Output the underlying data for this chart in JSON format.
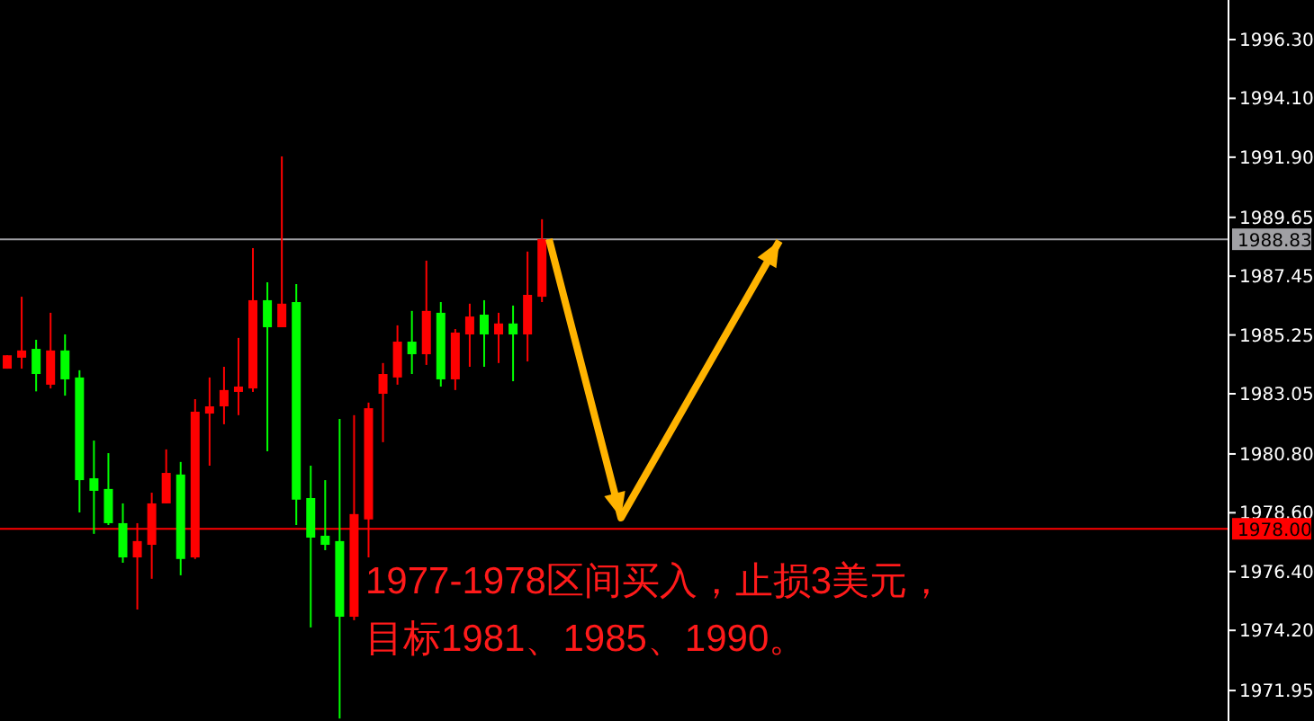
{
  "chart_data": {
    "type": "candlestick",
    "categories": [
      null,
      null,
      null,
      null,
      null,
      null,
      null,
      null,
      null,
      null,
      null,
      null,
      null,
      null,
      null,
      null,
      null,
      null,
      null,
      null,
      null,
      null,
      null,
      null,
      null,
      null,
      null,
      null,
      null,
      null,
      null,
      null,
      null,
      null,
      null,
      null,
      null,
      null,
      null,
      null,
      null,
      null,
      null,
      null,
      null,
      null,
      null,
      null,
      null,
      null,
      null,
      null,
      null,
      null,
      null,
      null,
      null,
      null,
      null,
      null,
      null,
      null,
      null,
      null,
      null,
      null,
      null,
      null,
      null,
      null,
      null,
      null,
      null,
      null,
      null,
      null,
      null,
      null,
      null,
      null,
      null,
      null,
      null,
      null,
      null
    ],
    "ohlc": [
      [
        1983.99,
        1984.49,
        1983.99,
        1984.49
      ],
      [
        1984.4,
        1986.68,
        1983.99,
        1984.67
      ],
      [
        1984.73,
        1985.07,
        1983.14,
        1983.79
      ],
      [
        1983.39,
        1986.08,
        1983.25,
        1984.67
      ],
      [
        1984.67,
        1985.27,
        1982.98,
        1983.59
      ],
      [
        1983.66,
        1983.93,
        1978.61,
        1979.82
      ],
      [
        1979.89,
        1981.3,
        1977.81,
        1979.42
      ],
      [
        1979.49,
        1980.83,
        1978.14,
        1978.21
      ],
      [
        1978.21,
        1978.95,
        1976.73,
        1976.93
      ],
      [
        1976.93,
        1978.21,
        1974.98,
        1977.54
      ],
      [
        1977.4,
        1979.35,
        1976.13,
        1978.95
      ],
      [
        1978.95,
        1980.97,
        1978.95,
        1980.09
      ],
      [
        1980.03,
        1980.5,
        1976.26,
        1976.87
      ],
      [
        1976.93,
        1982.85,
        1976.87,
        1982.38
      ],
      [
        1982.31,
        1983.66,
        1980.36,
        1982.58
      ],
      [
        1982.58,
        1984.06,
        1981.91,
        1983.19
      ],
      [
        1983.12,
        1985.14,
        1982.25,
        1983.32
      ],
      [
        1983.25,
        1988.5,
        1983.12,
        1986.55
      ],
      [
        1986.55,
        1987.22,
        1980.9,
        1985.54
      ],
      [
        1985.54,
        1991.93,
        1985.54,
        1986.42
      ],
      [
        1986.48,
        1987.15,
        1978.14,
        1979.09
      ],
      [
        1979.15,
        1980.36,
        1974.31,
        1977.67
      ],
      [
        1977.74,
        1979.82,
        1977.2,
        1977.4
      ],
      [
        1977.54,
        1982.11,
        1970.9,
        1974.71
      ],
      [
        1974.71,
        1982.25,
        1974.58,
        1978.55
      ],
      [
        1978.35,
        1982.72,
        1976.93,
        1982.51
      ],
      [
        1983.05,
        1984.2,
        1981.24,
        1983.79
      ],
      [
        1983.66,
        1985.61,
        1983.39,
        1985.0
      ],
      [
        1985.0,
        1986.15,
        1983.79,
        1984.53
      ],
      [
        1984.53,
        1988.03,
        1984.13,
        1986.15
      ],
      [
        1986.08,
        1986.48,
        1983.32,
        1983.59
      ],
      [
        1983.59,
        1985.47,
        1983.19,
        1985.34
      ],
      [
        1985.27,
        1986.42,
        1984.06,
        1985.94
      ],
      [
        1986.01,
        1986.55,
        1984.06,
        1985.27
      ],
      [
        1985.27,
        1986.08,
        1984.2,
        1985.68
      ],
      [
        1985.68,
        1986.35,
        1983.52,
        1985.27
      ],
      [
        1985.27,
        1988.37,
        1984.26,
        1986.75
      ],
      [
        1986.68,
        1989.58,
        1986.48,
        1988.84
      ],
      null,
      null,
      null,
      null,
      null,
      null,
      null,
      null,
      null,
      null,
      null,
      null,
      null,
      null,
      null,
      null,
      null,
      null,
      null,
      null,
      null,
      null,
      null,
      null,
      null,
      null,
      null,
      null,
      null,
      null,
      null,
      null,
      null,
      null,
      null,
      null,
      null,
      null,
      null,
      null,
      null,
      null,
      null,
      null,
      null,
      null,
      null
    ],
    "colors": [
      "#ff0000",
      "#ff0000",
      "#00ff00",
      "#ff0000",
      "#00ff00",
      "#00ff00",
      "#00ff00",
      "#00ff00",
      "#00ff00",
      "#ff0000",
      "#ff0000",
      "#ff0000",
      "#00ff00",
      "#ff0000",
      "#ff0000",
      "#ff0000",
      "#ff0000",
      "#ff0000",
      "#00ff00",
      "#ff0000",
      "#00ff00",
      "#00ff00",
      "#00ff00",
      "#00ff00",
      "#ff0000",
      "#ff0000",
      "#ff0000",
      "#ff0000",
      "#00ff00",
      "#ff0000",
      "#00ff00",
      "#ff0000",
      "#ff0000",
      "#00ff00",
      "#ff0000",
      "#00ff00",
      "#ff0000",
      "#ff0000",
      null,
      null,
      null,
      null,
      null,
      null,
      null,
      null,
      null,
      null,
      null,
      null,
      null,
      null,
      null,
      null,
      null,
      null,
      null,
      null,
      null,
      null,
      null,
      null,
      null,
      null,
      null,
      null,
      null,
      null,
      null,
      null,
      null,
      null,
      null,
      null,
      null,
      null,
      null,
      null,
      null,
      null,
      null,
      null,
      null,
      null,
      null
    ],
    "ylim": [
      1970.81,
      1997.78
    ],
    "yticks": [
      {
        "value": 1971.95,
        "label": "1971.95"
      },
      {
        "value": 1974.2,
        "label": "1974.20"
      },
      {
        "value": 1976.4,
        "label": "1976.40"
      },
      {
        "value": 1978.6,
        "label": "1978.60"
      },
      {
        "value": 1980.8,
        "label": "1980.80"
      },
      {
        "value": 1983.05,
        "label": "1983.05"
      },
      {
        "value": 1985.25,
        "label": "1985.25"
      },
      {
        "value": 1987.45,
        "label": "1987.45"
      },
      {
        "value": 1989.65,
        "label": "1989.65"
      },
      {
        "value": 1991.9,
        "label": "1991.90"
      },
      {
        "value": 1994.1,
        "label": "1994.10"
      },
      {
        "value": 1996.3,
        "label": "1996.30"
      }
    ],
    "tick_labels": "y",
    "ref_lines": [
      {
        "axis": "y",
        "value": 1988.83,
        "label": "1988.83",
        "color": "#a0a0a4"
      },
      {
        "axis": "y",
        "value": 1978.0,
        "label": "1978.00",
        "color": "#ff0000"
      }
    ],
    "annotations": [
      "1977-1978区间买入，止损3美元，",
      "目标1981、1985、1990。"
    ]
  }
}
